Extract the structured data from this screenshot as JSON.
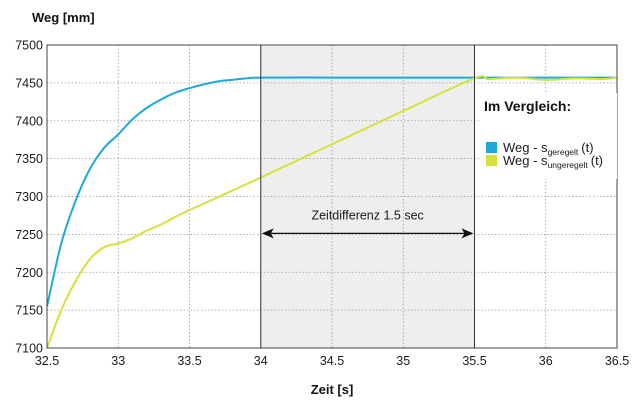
{
  "chart_data": {
    "type": "line",
    "ylabel": "Weg [mm]",
    "xlabel": "Zeit [s]",
    "xlim": [
      32.5,
      36.5
    ],
    "ylim": [
      7100,
      7500
    ],
    "x_ticks": [
      32.5,
      33,
      33.5,
      34,
      34.5,
      35,
      35.5,
      36,
      36.5
    ],
    "x_tick_labels": [
      "32.5",
      "33",
      "33.5",
      "34",
      "34.5",
      "35",
      "35.5",
      "36",
      "36.5"
    ],
    "y_ticks": [
      7100,
      7150,
      7200,
      7250,
      7300,
      7350,
      7400,
      7450,
      7500
    ],
    "grid": true,
    "legend": {
      "title": "Im Vergleich:",
      "placement": "right"
    },
    "highlight_region": {
      "x_start": 34,
      "x_end": 35.5,
      "label": "Zeitdifferenz 1.5 sec",
      "arrow_y": 7250
    },
    "series": [
      {
        "label_main": "Weg - s",
        "label_sub": "geregelt",
        "label_suffix": "(t)",
        "color": "#1fa8dc",
        "x": [
          32.5,
          32.6,
          32.7,
          32.8,
          32.9,
          33.0,
          33.1,
          33.2,
          33.3,
          33.4,
          33.5,
          33.6,
          33.7,
          33.8,
          33.9,
          34.0,
          34.5,
          35.0,
          35.5,
          36.0,
          36.5
        ],
        "y": [
          7155,
          7238,
          7294,
          7336,
          7364,
          7382,
          7402,
          7417,
          7428,
          7437,
          7443,
          7448,
          7452,
          7454,
          7456,
          7457,
          7457,
          7457,
          7457,
          7457,
          7457
        ]
      },
      {
        "label_main": "Weg - s",
        "label_sub": "ungeregelt",
        "label_suffix": "(t)",
        "color": "#d7e03c",
        "x": [
          32.5,
          32.6,
          32.7,
          32.8,
          32.9,
          33.0,
          33.1,
          33.2,
          33.3,
          33.4,
          33.5,
          34.0,
          34.5,
          35.0,
          35.5,
          35.6,
          35.8,
          36.0,
          36.2,
          36.4,
          36.5
        ],
        "y": [
          7100,
          7150,
          7188,
          7217,
          7233,
          7238,
          7245,
          7255,
          7263,
          7273,
          7282,
          7325,
          7369,
          7413,
          7456,
          7455,
          7457,
          7454,
          7456,
          7455,
          7457
        ]
      }
    ]
  }
}
